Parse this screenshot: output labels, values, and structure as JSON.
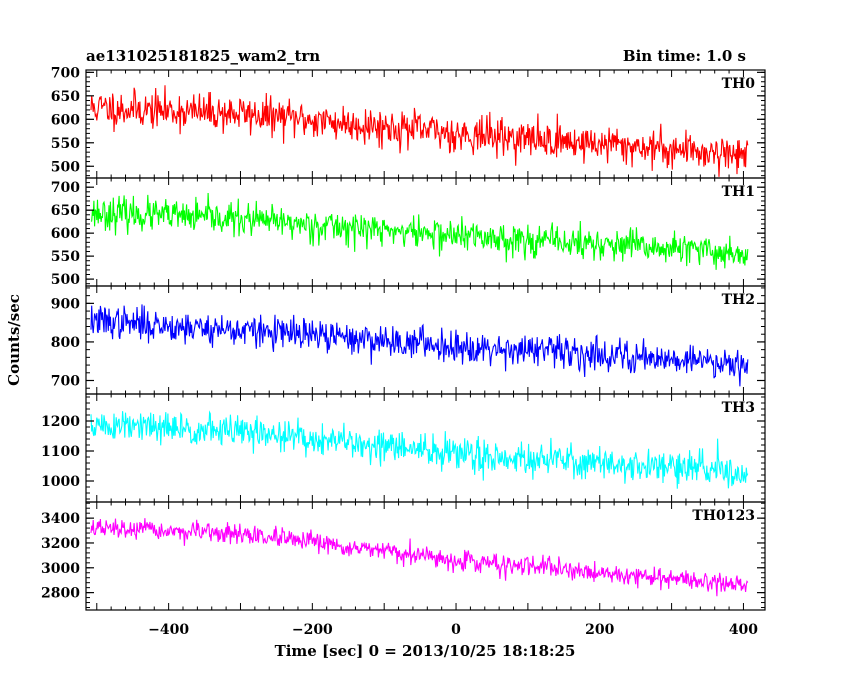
{
  "header": {
    "title": "ae131025181825_wam2_trn",
    "bin_time": "Bin time: 1.0 s"
  },
  "chart_data": {
    "type": "line",
    "xlabel": "Time [sec] 0 = 2013/10/25 18:18:25",
    "ylabel": "Counts/sec",
    "xlim": [
      -515,
      430
    ],
    "x_ticks": [
      -400,
      -200,
      0,
      200,
      400
    ],
    "x_range": [
      -508,
      406
    ],
    "grid": false,
    "panels": [
      {
        "name": "TH0",
        "color": "#ff0000",
        "ylim": [
          475,
          705
        ],
        "y_ticks": [
          500,
          550,
          600,
          650,
          700
        ],
        "trend": [
          [
            -508,
            625
          ],
          [
            -300,
            612
          ],
          [
            0,
            570
          ],
          [
            406,
            525
          ]
        ],
        "noise": 36,
        "seed": 11
      },
      {
        "name": "TH1",
        "color": "#00ff00",
        "ylim": [
          485,
          720
        ],
        "y_ticks": [
          500,
          550,
          600,
          650,
          700
        ],
        "trend": [
          [
            -508,
            645
          ],
          [
            -300,
            630
          ],
          [
            0,
            595
          ],
          [
            406,
            555
          ]
        ],
        "noise": 32,
        "seed": 23
      },
      {
        "name": "TH2",
        "color": "#0000ff",
        "ylim": [
          665,
          945
        ],
        "y_ticks": [
          700,
          800,
          900
        ],
        "trend": [
          [
            -508,
            855
          ],
          [
            -300,
            830
          ],
          [
            0,
            790
          ],
          [
            406,
            745
          ]
        ],
        "noise": 38,
        "seed": 37
      },
      {
        "name": "TH3",
        "color": "#00ffff",
        "ylim": [
          930,
          1290
        ],
        "y_ticks": [
          1000,
          1100,
          1200
        ],
        "trend": [
          [
            -508,
            1185
          ],
          [
            -300,
            1165
          ],
          [
            0,
            1090
          ],
          [
            406,
            1030
          ]
        ],
        "noise": 50,
        "seed": 51
      },
      {
        "name": "TH0123",
        "color": "#ff00ff",
        "ylim": [
          2660,
          3530
        ],
        "y_ticks": [
          2800,
          3000,
          3200,
          3400
        ],
        "trend": [
          [
            -508,
            3320
          ],
          [
            -300,
            3270
          ],
          [
            0,
            3060
          ],
          [
            406,
            2860
          ]
        ],
        "noise": 70,
        "seed": 67
      }
    ]
  }
}
